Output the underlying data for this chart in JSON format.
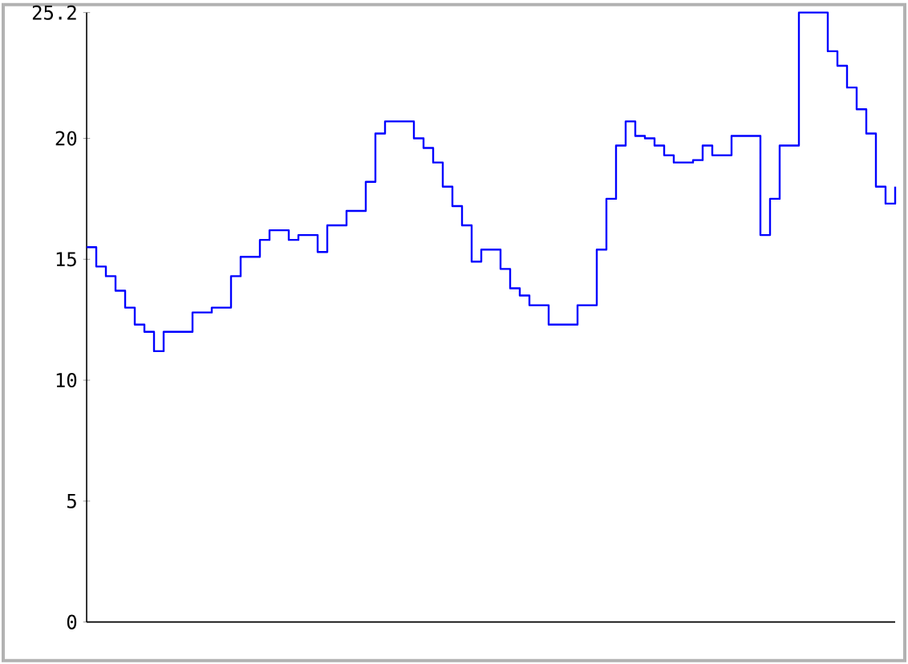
{
  "chart_data": {
    "type": "step",
    "categories": [
      null,
      null,
      null,
      null,
      null,
      null,
      null,
      null,
      null,
      null,
      null,
      null,
      null,
      null,
      null,
      null,
      null,
      null,
      null,
      null,
      null,
      null,
      null,
      null,
      null,
      null,
      null,
      null,
      null,
      null,
      null,
      null,
      null,
      null,
      null,
      null,
      null,
      null,
      null,
      null,
      null,
      null,
      null,
      null,
      null,
      null,
      null,
      null,
      null,
      null,
      null,
      null,
      null,
      null,
      null,
      null,
      null,
      null,
      null,
      null,
      null,
      null,
      null,
      null,
      null,
      null,
      null,
      null,
      null,
      null,
      null,
      null,
      null,
      null,
      null,
      null,
      null,
      null,
      null,
      null,
      null,
      null,
      null,
      null,
      null
    ],
    "values": [
      15.5,
      14.7,
      14.3,
      13.7,
      13.0,
      12.3,
      12.0,
      11.2,
      12.0,
      12.0,
      12.0,
      12.8,
      12.8,
      13.0,
      13.0,
      14.3,
      15.1,
      15.1,
      15.8,
      16.2,
      16.2,
      15.8,
      16.0,
      16.0,
      15.3,
      16.4,
      16.4,
      17.0,
      17.0,
      18.2,
      20.2,
      20.7,
      20.7,
      20.7,
      20.0,
      19.6,
      19.0,
      18.0,
      17.2,
      16.4,
      14.9,
      15.4,
      15.4,
      14.6,
      13.8,
      13.5,
      13.1,
      13.1,
      12.3,
      12.3,
      12.3,
      13.1,
      13.1,
      15.4,
      17.5,
      19.7,
      20.7,
      20.1,
      20.0,
      19.7,
      19.3,
      19.0,
      19.0,
      19.1,
      19.7,
      19.3,
      19.3,
      20.1,
      20.1,
      20.1,
      16.0,
      17.5,
      19.7,
      19.7,
      25.2,
      25.2,
      25.2,
      23.6,
      23.0,
      22.1,
      21.2,
      20.2,
      18.0,
      17.3,
      18.0
    ],
    "color": "#0000ff",
    "ylim": [
      0,
      25.2
    ],
    "yticks": [
      0,
      5,
      10,
      15,
      20,
      25.2
    ]
  }
}
